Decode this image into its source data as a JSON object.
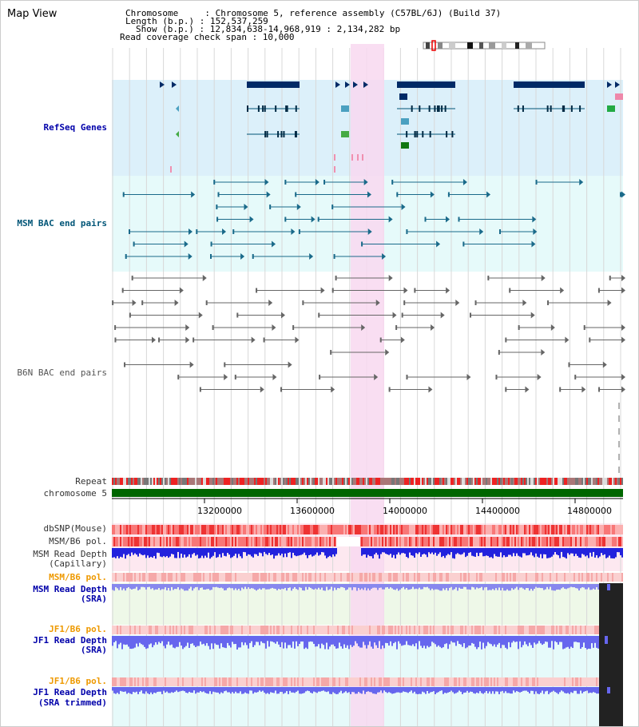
{
  "title": "Map View",
  "info": {
    "chromosome": "Chromosome     : Chromosome 5, reference assembly (C57BL/6J) (Build 37)",
    "length": "Length (b.p.) : 152,537,259",
    "show": "Show (b.p.) : 12,834,638-14,968,919 : 2,134,282 bp",
    "coverage": "Read coverage check span : 10,000"
  },
  "tracks": {
    "refseq": "RefSeq Genes",
    "msm_bac": "MSM BAC end pairs",
    "b6n_bac": "B6N BAC end pairs",
    "repeat": "Repeat",
    "chromosome": "chromosome 5",
    "dbsnp": "dbSNP(Mouse)",
    "msm_b6_pol": "MSM/B6 pol.",
    "msm_read_depth": "MSM Read Depth",
    "capillary": "(Capillary)",
    "msm_b6_pol2": "MSM/B6 pol.",
    "msm_read_depth_sra": "MSM Read Depth",
    "sra": "(SRA)",
    "jf1_b6_pol": "JF1/B6 pol.",
    "jf1_read_depth": "JF1 Read Depth",
    "sra2": "(SRA)",
    "jf1_b6_pol2": "JF1/B6 pol.",
    "jf1_read_depth2": "JF1 Read Depth",
    "sra_trimmed": "(SRA trimmed)"
  },
  "axis": {
    "ticks": [
      "13200000",
      "13600000",
      "14000000",
      "14400000",
      "14800000"
    ]
  },
  "colors": {
    "refseq_bg": "#dcf0fa",
    "msm_bg": "#e6fafa",
    "highlight": "#f8d8f0",
    "chromosome_bar": "#006600"
  }
}
